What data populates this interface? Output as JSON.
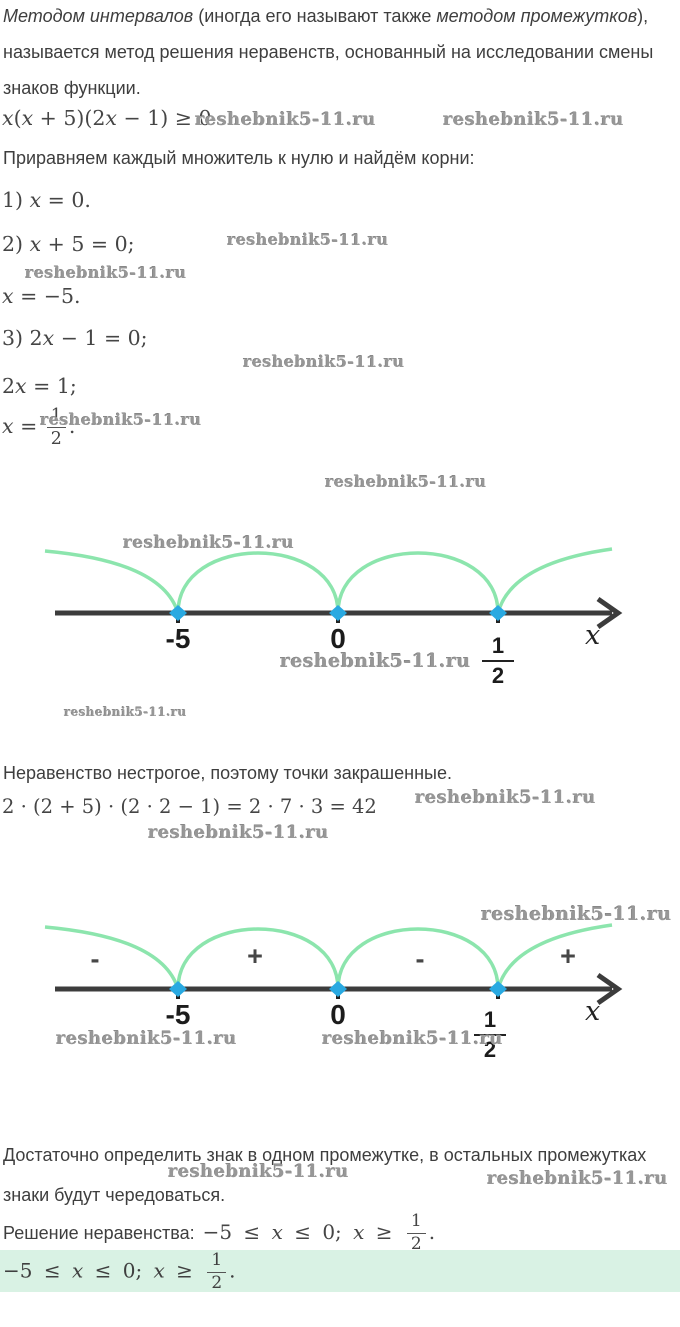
{
  "watermark_text": "reshebnik5-11.ru",
  "colors": {
    "arc_green": "#8ce5ad",
    "point_blue": "#29a9e1",
    "axis_dark": "#3c3c3c",
    "answer_background": "#d9f2e4",
    "body_text": "#3e3e3e",
    "watermark_gray": "#979797"
  },
  "intro": {
    "line1_italic1": "Методом интервалов",
    "line1_plain1": " (иногда его называют также ",
    "line1_italic2": "методом промежутков",
    "line1_plain2": "),",
    "line2": "называется метод решения неравенств, основанный на исследовании смены",
    "line3": "знаков функции."
  },
  "inequality_parts": [
    {
      "t": "x",
      "i": true
    },
    {
      "t": "("
    },
    {
      "t": "x",
      "i": true
    },
    {
      "t": " + 5)(2"
    },
    {
      "t": "x",
      "i": true
    },
    {
      "t": " − 1) ≥ 0"
    }
  ],
  "roots_intro": "Приравняем каждый множитель к нулю и найдём корни:",
  "steps": {
    "s1": [
      {
        "t": "1) "
      },
      {
        "t": "x",
        "i": true
      },
      {
        "t": " = 0."
      }
    ],
    "s2a": [
      {
        "t": "2) "
      },
      {
        "t": "x",
        "i": true
      },
      {
        "t": " + 5 = 0;"
      }
    ],
    "s2b": [
      {
        "t": "x",
        "i": true
      },
      {
        "t": " = −5."
      }
    ],
    "s3a": [
      {
        "t": "3) 2"
      },
      {
        "t": "x",
        "i": true
      },
      {
        "t": " − 1 = 0;"
      }
    ],
    "s3b": [
      {
        "t": "2"
      },
      {
        "t": "x",
        "i": true
      },
      {
        "t": " = 1;"
      }
    ],
    "s3c": [
      {
        "t": "x",
        "i": true
      },
      {
        "t": " = "
      },
      {
        "f": [
          "1",
          "2"
        ]
      },
      {
        "t": "."
      }
    ]
  },
  "nonstrict_note": "Неравенство нестрогое, поэтому точки закрашенные.",
  "check_parts": [
    {
      "t": "2 · (2 + 5) · (2 · 2 − 1) = 2 · 7 · 3 = 42"
    }
  ],
  "alternation_note": {
    "line1": "Достаточно определить знак в одном промежутке, в остальных промежутках",
    "line2": "знаки будут чередоваться."
  },
  "solution": {
    "label": "Решение неравенства:",
    "math": [
      {
        "t": "−5 ≤ "
      },
      {
        "t": "x",
        "i": true
      },
      {
        "t": " ≤ 0; "
      },
      {
        "t": "x",
        "i": true
      },
      {
        "t": " ≥ "
      },
      {
        "f": [
          "1",
          "2"
        ]
      },
      {
        "t": "."
      }
    ]
  },
  "number_line": {
    "label_minus5": "-5",
    "label_zero": "0",
    "half_numerator": "1",
    "half_denominator": "2",
    "axis_label": "x",
    "signs": [
      "-",
      "+",
      "-",
      "+"
    ],
    "roots": [
      -5,
      0,
      0.5
    ]
  }
}
